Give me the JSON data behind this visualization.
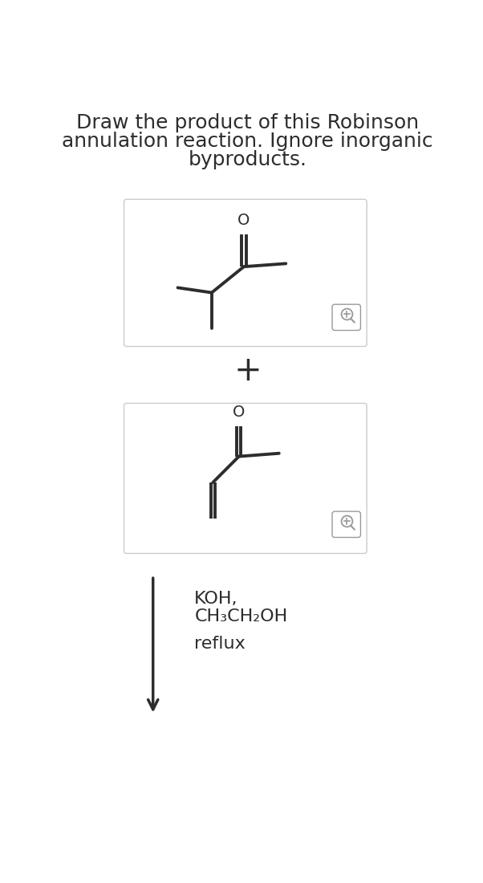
{
  "title_lines": [
    "Draw the product of this Robinson",
    "annulation reaction. Ignore inorganic",
    "byproducts."
  ],
  "title_fontsize": 18,
  "line_color": "#2d2d2d",
  "box_edge_color": "#cccccc",
  "bg_color": "#ffffff",
  "arrow_color": "#2d2d2d",
  "text_color": "#2d2d2d",
  "conditions_line1": "KOH,",
  "conditions_line2": "CH₃CH₂OH",
  "conditions_line3": "reflux",
  "magnifier_color": "#999999",
  "plus_fontsize": 30,
  "conditions_fontsize": 16,
  "o_fontsize": 14
}
